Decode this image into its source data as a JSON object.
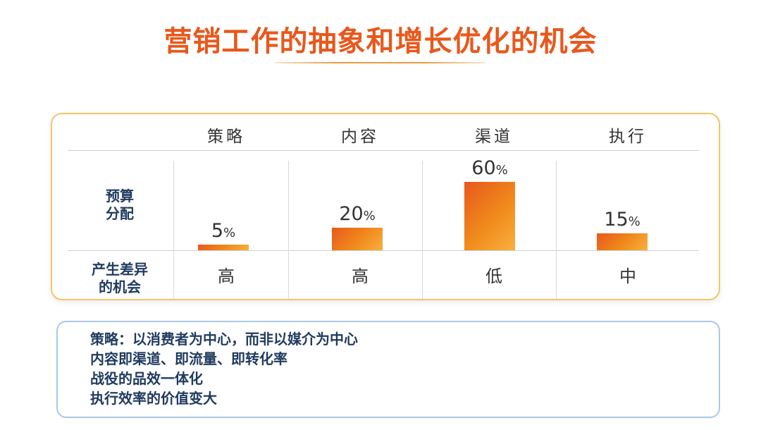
{
  "title": "营销工作的抽象和增长优化的机会",
  "chart_data": {
    "type": "bar",
    "categories": [
      "策略",
      "内容",
      "渠道",
      "执行"
    ],
    "values": [
      5,
      20,
      60,
      15
    ],
    "value_suffix": "%",
    "row_label_value": [
      "预算",
      "分配"
    ],
    "row_label_opportunity": [
      "产生差异",
      "的机会"
    ],
    "opportunity": [
      "高",
      "高",
      "低",
      "中"
    ],
    "ylim": [
      0,
      60
    ],
    "colors": {
      "bar_start": "#e8581c",
      "bar_end": "#f8b040",
      "card_border": "#f2c56a"
    }
  },
  "notes": [
    "策略：以消费者为中心，而非以媒介为中心",
    "内容即渠道、即流量、即转化率",
    "战役的品效一体化",
    "执行效率的价值变大"
  ]
}
